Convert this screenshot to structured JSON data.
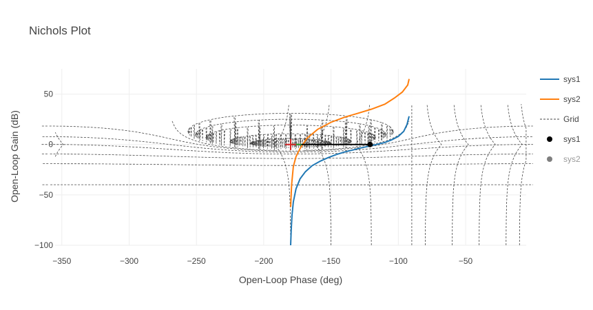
{
  "chart_data": {
    "type": "line",
    "title": "Nichols Plot",
    "xlabel": "Open-Loop Phase (deg)",
    "ylabel": "Open-Loop Gain (dB)",
    "xlim": [
      -355,
      -5
    ],
    "ylim": [
      -100,
      75
    ],
    "xticks": [
      -350,
      -300,
      -250,
      -200,
      -150,
      -100,
      -50
    ],
    "yticks": [
      50,
      0,
      -50,
      -100
    ],
    "x_tick_labels": [
      "−350",
      "−300",
      "−250",
      "−200",
      "−150",
      "−100",
      "−50"
    ],
    "y_tick_labels": [
      "50",
      "0",
      "−50",
      "−100"
    ],
    "grid": true,
    "legend_position": "right",
    "legend": [
      {
        "label": "sys1",
        "kind": "line",
        "color": "#1f77b4"
      },
      {
        "label": "sys2",
        "kind": "line",
        "color": "#ff7f0e"
      },
      {
        "label": "Grid",
        "kind": "dash",
        "color": "#444444"
      },
      {
        "label": "sys1",
        "kind": "marker",
        "color": "#000000"
      },
      {
        "label": "sys2",
        "kind": "marker",
        "color": "#7f7f7f",
        "dimmed": true
      }
    ],
    "series": [
      {
        "name": "sys1",
        "color": "#1f77b4",
        "x": [
          -180,
          -179.6,
          -179,
          -178,
          -176,
          -173,
          -169,
          -164,
          -158,
          -152,
          -146,
          -140,
          -134,
          -128,
          -122,
          -116,
          -110,
          -105,
          -100,
          -96,
          -93.5,
          -92
        ],
        "y": [
          -100,
          -85,
          -70,
          -57,
          -44,
          -34,
          -27,
          -21,
          -16.5,
          -13,
          -10,
          -7.5,
          -5.5,
          -3.5,
          -1.8,
          0,
          2,
          4.5,
          8,
          13,
          20,
          28
        ]
      },
      {
        "name": "sys2",
        "color": "#ff7f0e",
        "x": [
          -180,
          -179.3,
          -178,
          -176,
          -173,
          -168,
          -160,
          -150,
          -140,
          -130,
          -120,
          -110,
          -103,
          -97,
          -93,
          -92
        ],
        "y": [
          -62,
          -40,
          -22,
          -12,
          -4,
          6,
          15,
          22,
          27,
          31,
          35,
          40,
          46,
          52,
          59,
          65
        ]
      }
    ],
    "markers": [
      {
        "series": "sys1",
        "x": -121,
        "y": 0,
        "color": "#000000",
        "shape": "circle"
      },
      {
        "series": "sys2",
        "x": -180,
        "y": 0,
        "color": "#d62728",
        "shape": "cross"
      }
    ],
    "margin_lines": [
      {
        "x": [
          -180,
          -121
        ],
        "y": [
          0,
          0
        ],
        "color": "#000000"
      },
      {
        "x": [
          -180,
          -172
        ],
        "y": [
          0,
          0
        ],
        "color": "#2ca02c"
      }
    ],
    "grid_curves": {
      "color": "#444444",
      "m_db": [
        6,
        3,
        1,
        0.5,
        0.25,
        0,
        -1,
        -3,
        -6,
        -12,
        -20,
        -40
      ],
      "phase_deg": [
        -1,
        -10,
        -20,
        -40,
        -60,
        -80,
        -90,
        -120,
        -150,
        -180
      ]
    }
  }
}
